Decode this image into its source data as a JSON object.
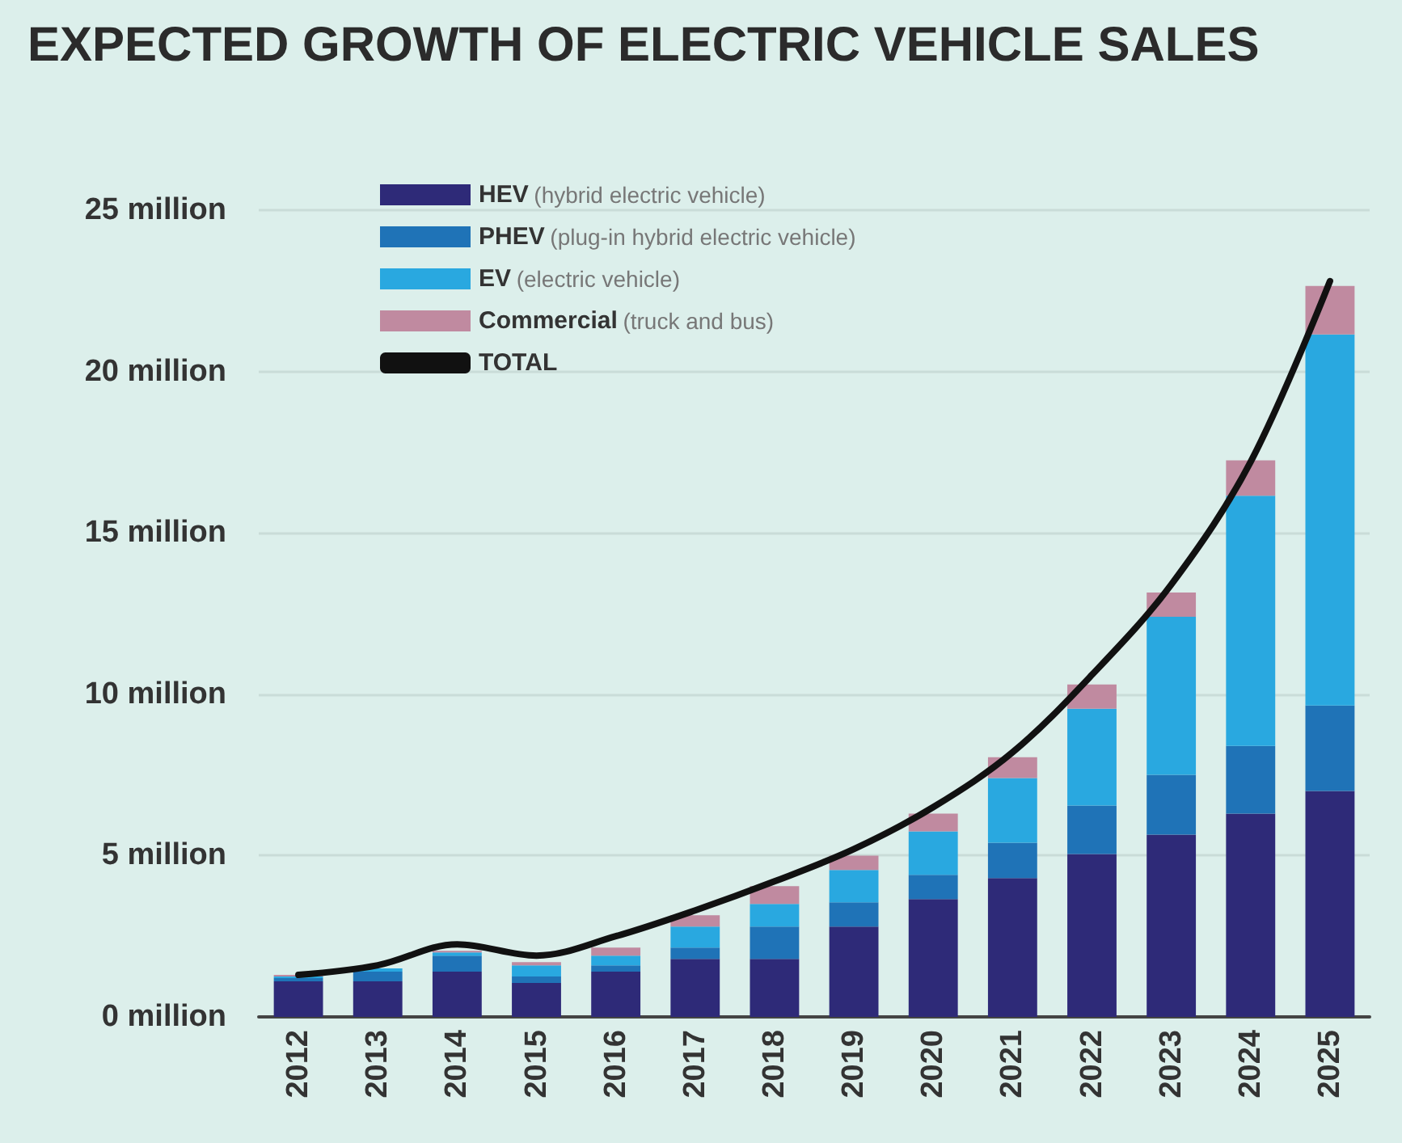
{
  "chart_data": {
    "type": "bar",
    "title": "EXPECTED GROWTH OF ELECTRIC VEHICLE SALES",
    "categories": [
      "2012",
      "2013",
      "2014",
      "2015",
      "2016",
      "2017",
      "2018",
      "2019",
      "2020",
      "2021",
      "2022",
      "2023",
      "2024",
      "2025"
    ],
    "stacked": true,
    "series": [
      {
        "name": "HEV (hybrid electric vehicle)",
        "color": "#2e2a78",
        "values": [
          1.1,
          1.1,
          1.4,
          1.05,
          1.4,
          1.8,
          1.8,
          2.8,
          3.65,
          4.3,
          5.05,
          5.65,
          6.3,
          7.0
        ]
      },
      {
        "name": "PHEV (plug-in hybrid electric vehicle)",
        "color": "#1f73b7",
        "values": [
          0.1,
          0.3,
          0.5,
          0.2,
          0.2,
          0.35,
          1.0,
          0.75,
          0.75,
          1.1,
          1.5,
          1.85,
          2.1,
          2.65
        ]
      },
      {
        "name": "EV (electric vehicle)",
        "color": "#29a8e0",
        "values": [
          0.05,
          0.1,
          0.1,
          0.35,
          0.3,
          0.65,
          0.7,
          1.0,
          1.35,
          2.0,
          3.0,
          4.9,
          7.75,
          11.5
        ]
      },
      {
        "name": "Commercial (truck and bus)",
        "color": "#c08aa0",
        "values": [
          0.05,
          null,
          0.05,
          0.1,
          0.25,
          0.35,
          0.55,
          0.45,
          0.55,
          0.65,
          0.75,
          0.75,
          1.1,
          1.5
        ]
      },
      {
        "name": "TOTAL",
        "type": "line",
        "color": "#111111",
        "values": [
          1.3,
          1.6,
          2.25,
          1.9,
          2.5,
          3.3,
          4.2,
          5.2,
          6.5,
          8.2,
          10.6,
          13.4,
          17.2,
          22.8
        ]
      }
    ],
    "ylim": [
      0,
      25
    ],
    "yticks": [
      {
        "value": 0,
        "label": "0 million"
      },
      {
        "value": 5,
        "label": "5 million"
      },
      {
        "value": 10,
        "label": "10 million"
      },
      {
        "value": 15,
        "label": "15 million"
      },
      {
        "value": 20,
        "label": "20 million"
      },
      {
        "value": 25,
        "label": "25 million"
      }
    ],
    "grid": "y",
    "legend": "top left",
    "marker": "none",
    "line_style": "solid"
  }
}
